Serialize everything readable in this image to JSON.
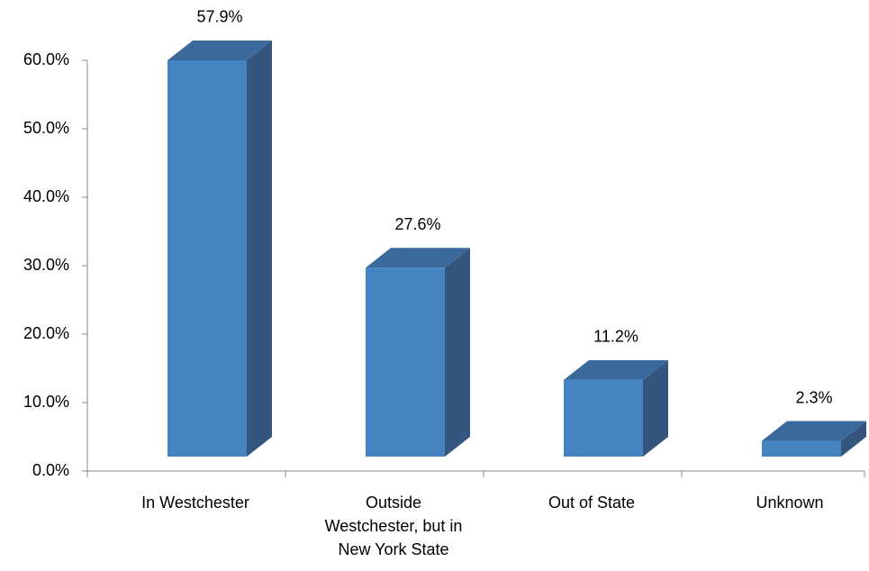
{
  "chart_data": {
    "type": "bar3d",
    "categories": [
      "In Westchester",
      "Outside Westchester, but in New York State",
      "Out of State",
      "Unknown"
    ],
    "values": [
      57.9,
      27.6,
      11.2,
      2.3
    ],
    "value_labels": [
      "57.9%",
      "27.6%",
      "11.2%",
      "2.3%"
    ],
    "color": "#4584c0",
    "ylim": [
      0,
      60
    ],
    "yticks": [
      {
        "value": 0,
        "label": "0.0%"
      },
      {
        "value": 10,
        "label": "10.0%"
      },
      {
        "value": 20,
        "label": "20.0%"
      },
      {
        "value": 30,
        "label": "30.0%"
      },
      {
        "value": 40,
        "label": "40.0%"
      },
      {
        "value": 50,
        "label": "50.0%"
      },
      {
        "value": 60,
        "label": "60.0%"
      }
    ],
    "grid": false
  }
}
